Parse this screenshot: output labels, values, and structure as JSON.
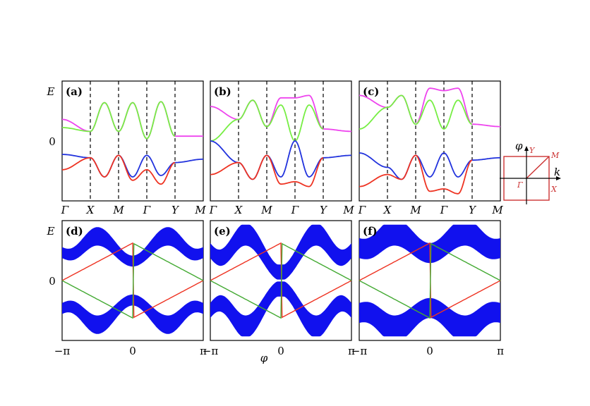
{
  "chart_data": [
    {
      "panel": "a",
      "label": "(a)",
      "type": "line",
      "ylabel": "E",
      "y_ticks": [
        "0"
      ],
      "x_ticks": [
        "Γ",
        "X",
        "M",
        "Γ",
        "Y",
        "M"
      ],
      "series": [
        {
          "color": "#ee44ee",
          "values": [
            0.45,
            0.2,
            0.8,
            0.2,
            0.8,
            0.05,
            0.82,
            0.1,
            0.1
          ],
          "x": [
            0,
            1,
            1.5,
            2,
            2.5,
            3,
            3.5,
            4,
            5
          ]
        },
        {
          "color": "#77ee44",
          "values": [
            0.28,
            0.2,
            0.8,
            0.2,
            0.8,
            0.05,
            0.82,
            0.1
          ],
          "x": [
            0,
            1,
            1.5,
            2,
            2.5,
            3,
            3.5,
            4
          ]
        },
        {
          "color": "#2233dd",
          "values": [
            -0.28,
            -0.35,
            -0.75,
            -0.3,
            -0.75,
            -0.3,
            -0.72,
            -0.45,
            -0.38
          ],
          "x": [
            0,
            1,
            1.5,
            2,
            2.5,
            3,
            3.5,
            4,
            5
          ]
        },
        {
          "color": "#ee3322",
          "values": [
            -0.6,
            -0.35,
            -0.75,
            -0.3,
            -0.82,
            -0.6,
            -0.9,
            -0.45
          ],
          "x": [
            0,
            1,
            1.5,
            2,
            2.5,
            3,
            3.5,
            4
          ]
        }
      ]
    },
    {
      "panel": "b",
      "label": "(b)",
      "type": "line",
      "x_ticks": [
        "Γ",
        "X",
        "M",
        "Γ",
        "Y",
        "M"
      ],
      "series": [
        {
          "color": "#ee44ee",
          "values": [
            0.72,
            0.45,
            0.85,
            0.3,
            0.9,
            0.9,
            0.95,
            0.25,
            0.2
          ]
        },
        {
          "color": "#77ee44",
          "values": [
            0.0,
            0.45,
            0.85,
            0.3,
            0.75,
            0.0,
            0.75,
            0.25
          ]
        },
        {
          "color": "#2233dd",
          "values": [
            0.0,
            -0.45,
            -0.8,
            -0.3,
            -0.75,
            0.0,
            -0.75,
            -0.35,
            -0.3
          ]
        },
        {
          "color": "#ee3322",
          "values": [
            -0.7,
            -0.45,
            -0.8,
            -0.3,
            -0.9,
            -0.85,
            -0.95,
            -0.35
          ]
        }
      ]
    },
    {
      "panel": "c",
      "label": "(c)",
      "type": "line",
      "x_ticks": [
        "Γ",
        "X",
        "M",
        "Γ",
        "Y",
        "M"
      ],
      "series": [
        {
          "color": "#ee44ee",
          "values": [
            0.95,
            0.7,
            0.95,
            0.35,
            1.1,
            1.05,
            1.1,
            0.35,
            0.3
          ]
        },
        {
          "color": "#77ee44",
          "values": [
            0.25,
            0.7,
            0.95,
            0.35,
            0.85,
            0.25,
            0.85,
            0.35
          ]
        },
        {
          "color": "#2233dd",
          "values": [
            -0.25,
            -0.55,
            -0.8,
            -0.3,
            -0.75,
            -0.25,
            -0.75,
            -0.4,
            -0.35
          ]
        },
        {
          "color": "#ee3322",
          "values": [
            -0.95,
            -0.7,
            -0.8,
            -0.3,
            -1.05,
            -1.0,
            -1.1,
            -0.4
          ]
        }
      ]
    },
    {
      "panel": "d",
      "label": "(d)",
      "type": "area",
      "ylabel": "E",
      "y_ticks": [
        "0"
      ],
      "x_ticks": [
        "−π",
        "0",
        "π"
      ],
      "band_color": "#1111ee",
      "edge_colors": [
        "#ee3322",
        "#44aa33"
      ]
    },
    {
      "panel": "e",
      "label": "(e)",
      "type": "area",
      "x_ticks": [
        "−π",
        "0",
        "π"
      ],
      "xlabel": "φ",
      "band_color": "#1111ee",
      "edge_colors": [
        "#ee3322",
        "#44aa33"
      ]
    },
    {
      "panel": "f",
      "label": "(f)",
      "type": "area",
      "x_ticks": [
        "−π",
        "0",
        "π"
      ],
      "band_color": "#1111ee",
      "edge_colors": [
        "#ee3322",
        "#44aa33"
      ]
    }
  ],
  "inset": {
    "axis_vertical": "φ",
    "axis_horizontal": "k",
    "corner_labels": [
      "Y",
      "M",
      "Γ",
      "X"
    ],
    "box_color": "#cc3333"
  }
}
